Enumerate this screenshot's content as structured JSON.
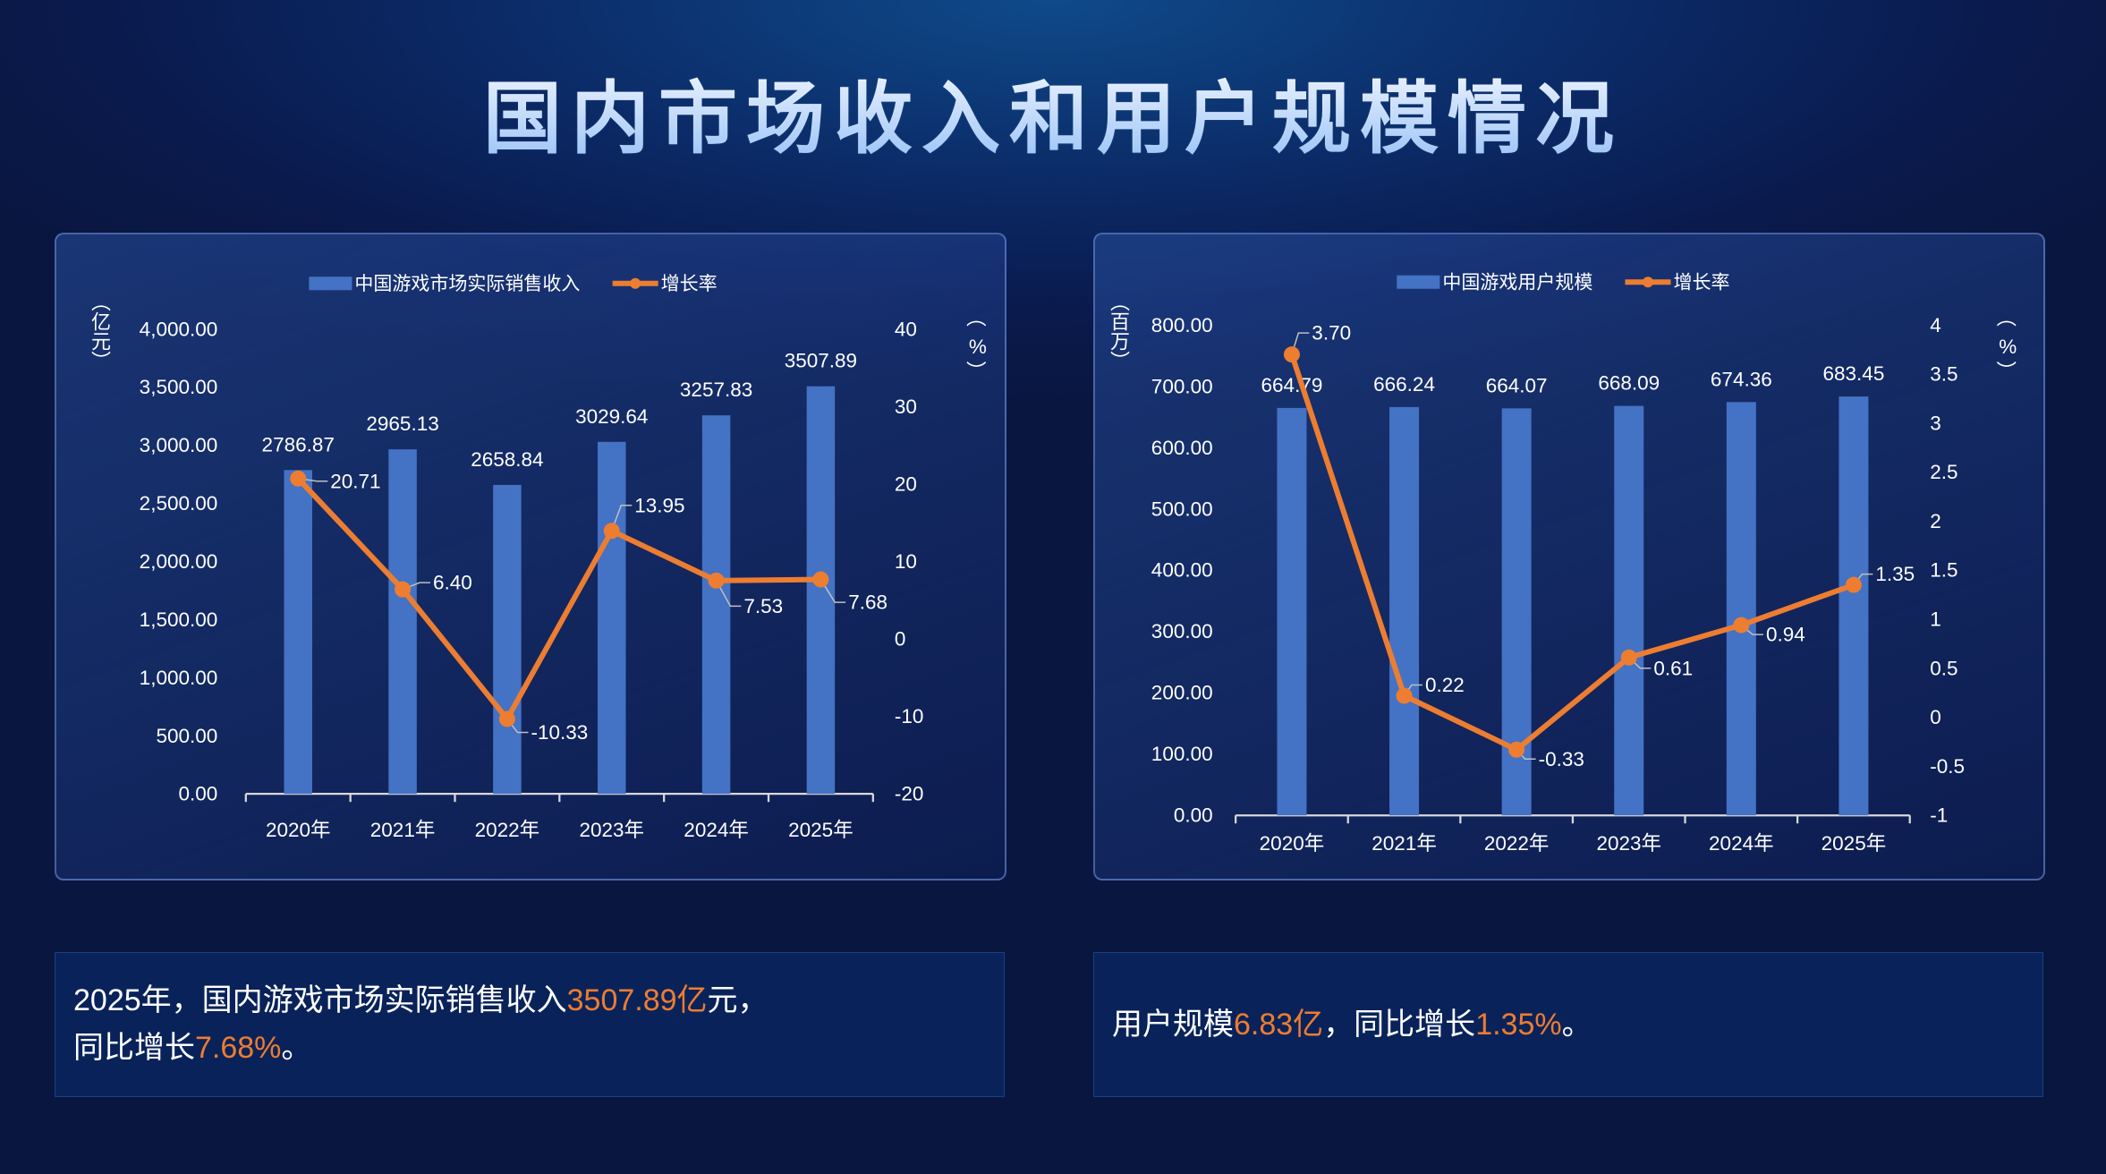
{
  "title": "国内市场收入和用户规模情况",
  "colors": {
    "bar": "#4472c4",
    "line": "#ed7d31",
    "highlight": "#ee7c30"
  },
  "chart_data": [
    {
      "type": "bar+line",
      "legend": {
        "bar": "中国游戏市场实际销售收入",
        "line": "增长率"
      },
      "ylabel_left": "（亿元）",
      "ylabel_right": "（%）",
      "categories": [
        "2020年",
        "2021年",
        "2022年",
        "2023年",
        "2024年",
        "2025年"
      ],
      "bar_values": [
        2786.87,
        2965.13,
        2658.84,
        3029.64,
        3257.83,
        3507.89
      ],
      "bar_labels": [
        "2786.87",
        "2965.13",
        "2658.84",
        "3029.64",
        "3257.83",
        "3507.89"
      ],
      "line_values": [
        20.71,
        6.4,
        -10.33,
        13.95,
        7.53,
        7.68
      ],
      "line_labels": [
        "20.71",
        "6.40",
        "-10.33",
        "13.95",
        "7.53",
        "7.68"
      ],
      "ylim_left": [
        0,
        4000
      ],
      "yticks_left": [
        "0.00",
        "500.00",
        "1,000.00",
        "1,500.00",
        "2,000.00",
        "2,500.00",
        "3,000.00",
        "3,500.00",
        "4,000.00"
      ],
      "ylim_right": [
        -20,
        40
      ],
      "yticks_right": [
        "-20",
        "-10",
        "0",
        "10",
        "20",
        "30",
        "40"
      ],
      "legend_position": "top",
      "grid": false
    },
    {
      "type": "bar+line",
      "legend": {
        "bar": "中国游戏用户规模",
        "line": "增长率"
      },
      "ylabel_left": "（百万）",
      "ylabel_right": "（%）",
      "categories": [
        "2020年",
        "2021年",
        "2022年",
        "2023年",
        "2024年",
        "2025年"
      ],
      "bar_values": [
        664.79,
        666.24,
        664.07,
        668.09,
        674.36,
        683.45
      ],
      "bar_labels": [
        "664.79",
        "666.24",
        "664.07",
        "668.09",
        "674.36",
        "683.45"
      ],
      "line_values": [
        3.7,
        0.22,
        -0.33,
        0.61,
        0.94,
        1.35
      ],
      "line_labels": [
        "3.70",
        "0.22",
        "-0.33",
        "0.61",
        "0.94",
        "1.35"
      ],
      "ylim_left": [
        0,
        800
      ],
      "yticks_left": [
        "0.00",
        "100.00",
        "200.00",
        "300.00",
        "400.00",
        "500.00",
        "600.00",
        "700.00",
        "800.00"
      ],
      "ylim_right": [
        -1,
        4
      ],
      "yticks_right": [
        "-1",
        "-0.5",
        "0",
        "0.5",
        "1",
        "1.5",
        "2",
        "2.5",
        "3",
        "3.5",
        "4"
      ],
      "legend_position": "top",
      "grid": false
    }
  ],
  "notes": [
    {
      "pre": "2025年，国内游戏市场实际销售收入",
      "v1": "3507.89亿",
      "mid": "元，",
      "line2": "同比增长",
      "v2": "7.68%",
      "post": "。"
    },
    {
      "pre": "用户规模",
      "v1": "6.83亿",
      "mid": "，同比增长",
      "v2": "1.35%",
      "post": "。"
    }
  ]
}
